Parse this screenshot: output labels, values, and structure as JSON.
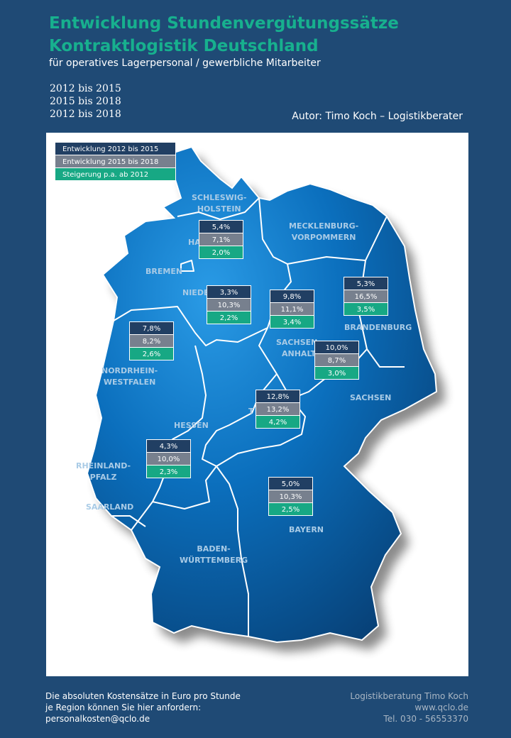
{
  "header": {
    "title_line1": "Entwicklung Stundenvergütungssätze",
    "title_line2": "Kontraktlogistik Deutschland",
    "subtitle": "für operatives Lagerpersonal / gewerbliche Mitarbeiter",
    "periods": [
      "2012 bis 2015",
      "2015 bis 2018",
      "2012 bis 2018"
    ],
    "author": "Autor: Timo Koch – Logistikberater"
  },
  "legend": {
    "items": [
      "Entwicklung 2012 bis 2015",
      "Entwicklung 2015 bis 2018",
      "Steigerung p.a. ab 2012"
    ],
    "colors": [
      "#213f63",
      "#77808e",
      "#17a884"
    ]
  },
  "states": {
    "sh1": "SCHLESWIG-",
    "sh2": "HOLSTEIN",
    "ham": "HA",
    "mv1": "MECKLENBURG-",
    "mv2": "VORPOMMERN",
    "hb": "BREMEN",
    "ni": "NIEDE",
    "bb": "BRANDENBURG",
    "st1": "SACHSEN",
    "st2": "ANHALT",
    "nw1": "NORDRHEIN-",
    "nw2": "WESTFALEN",
    "sn": "SACHSEN",
    "th": "T",
    "he": "HESSEN",
    "rp1": "RHEINLAND-",
    "rp2": "PFALZ",
    "sl": "SAARLAND",
    "by": "BAYERN",
    "bw1": "BADEN-",
    "bw2": "WÜRTTEMBERG"
  },
  "boxes": {
    "sh": [
      "5,4%",
      "7,1%",
      "2,0%"
    ],
    "ni": [
      "3,3%",
      "10,3%",
      "2,2%"
    ],
    "st": [
      "9,8%",
      "11,1%",
      "3,4%"
    ],
    "bb": [
      "5,3%",
      "16,5%",
      "3,5%"
    ],
    "nw": [
      "7,8%",
      "8,2%",
      "2,6%"
    ],
    "sn": [
      "10,0%",
      "8,7%",
      "3,0%"
    ],
    "th": [
      "12,8%",
      "13,2%",
      "4,2%"
    ],
    "rp": [
      "4,3%",
      "10,0%",
      "2,3%"
    ],
    "by": [
      "5,0%",
      "10,3%",
      "2,5%"
    ]
  },
  "footer": {
    "left": [
      "Die absoluten Kostensätze in Euro pro Stunde",
      "je Region  können  Sie hier anfordern:",
      "personalkosten@qclo.de"
    ],
    "right": [
      "Logistikberatung Timo Koch",
      "www.qclo.de",
      "Tel. 030 - 56553370"
    ]
  }
}
